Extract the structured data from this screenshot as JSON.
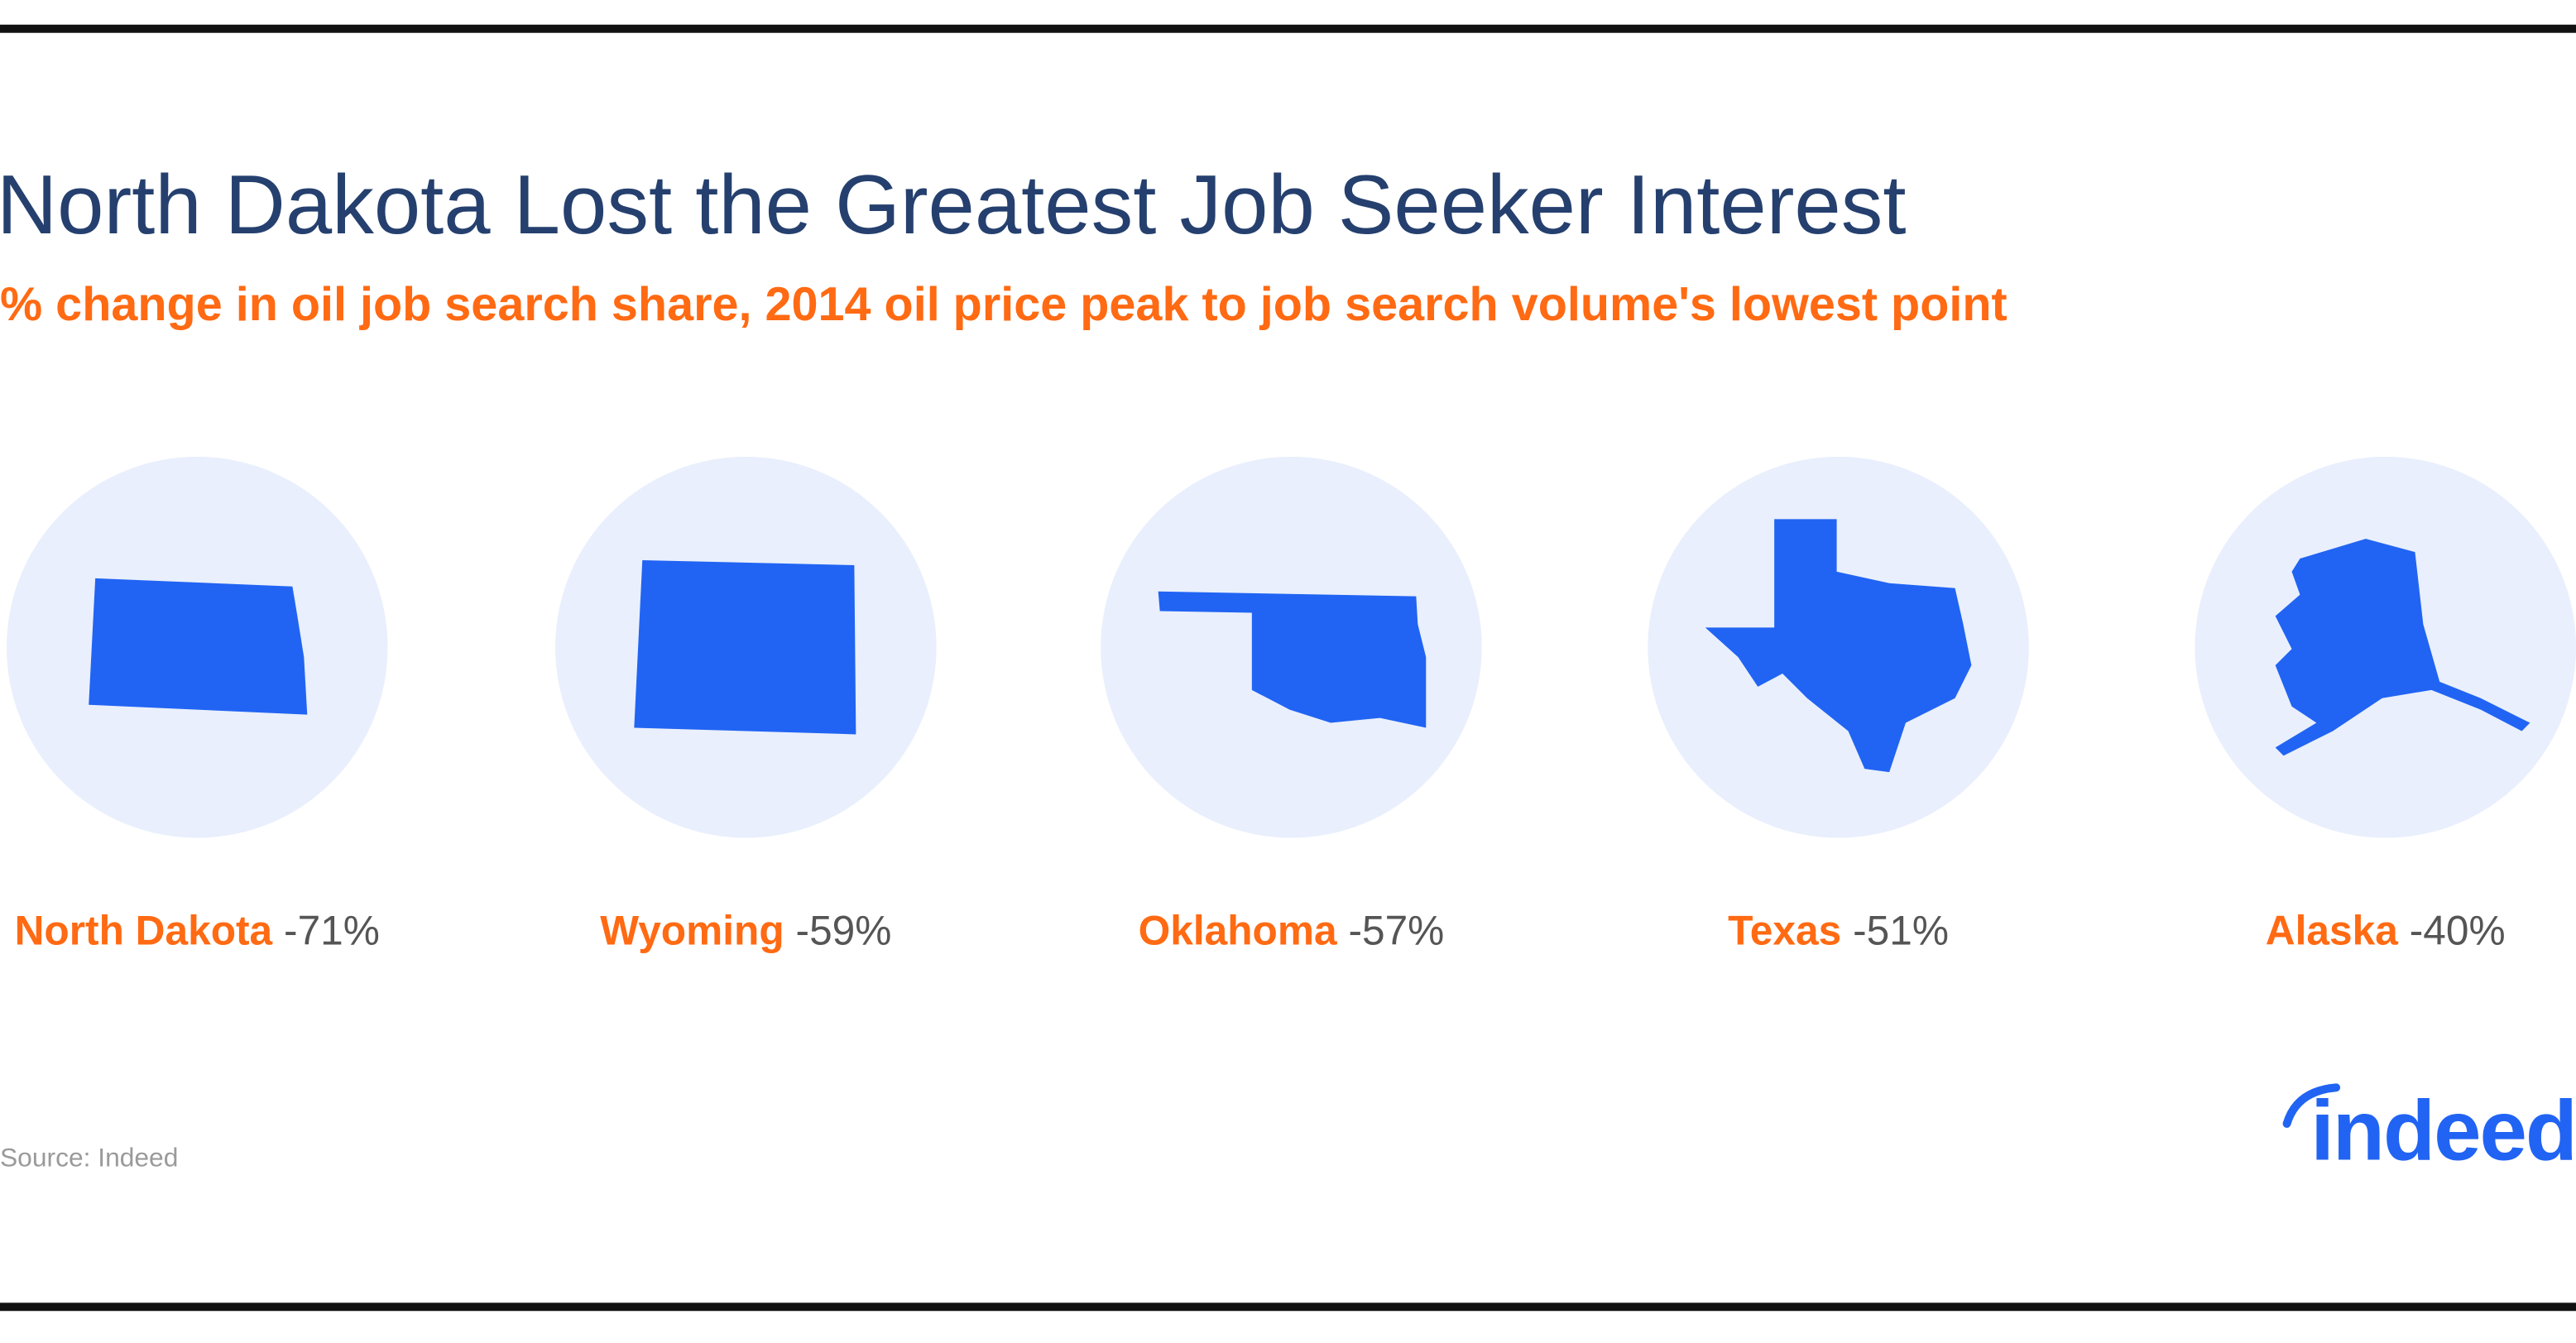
{
  "header": {
    "title": "North Dakota Lost the Greatest Job Seeker Interest",
    "subtitle": "% change in oil job search share, 2014 oil price peak to job search volume's lowest point"
  },
  "items": [
    {
      "name": "North Dakota",
      "change": "-71%"
    },
    {
      "name": "Wyoming",
      "change": "-59%"
    },
    {
      "name": "Oklahoma",
      "change": "-57%"
    },
    {
      "name": "Texas",
      "change": "-51%"
    },
    {
      "name": "Alaska",
      "change": "-40%"
    }
  ],
  "footer": {
    "source": "Source: Indeed",
    "logo": "indeed"
  }
}
